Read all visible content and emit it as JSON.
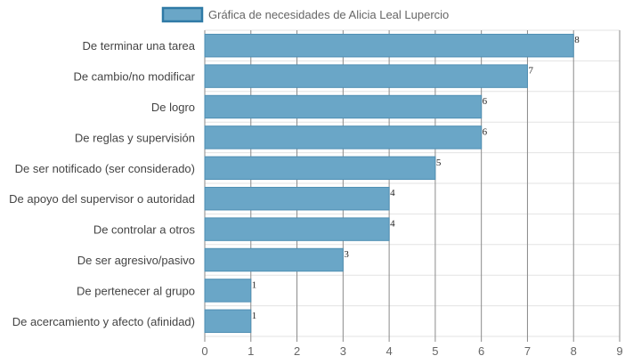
{
  "legend": {
    "label": "Gráfica de necesidades de Alicia Leal Lupercio"
  },
  "colors": {
    "bar_fill": "#6aa6c7",
    "bar_stroke": "#4f8fb3",
    "legend_stroke": "#2f7aa6",
    "grid_major": "#8a8a8a",
    "grid_minor": "#e3e3e3"
  },
  "chart_data": {
    "type": "bar",
    "orientation": "horizontal",
    "categories": [
      "De terminar una tarea",
      "De cambio/no modificar",
      "De logro",
      "De reglas y supervisión",
      "De ser notificado (ser considerado)",
      "De apoyo del supervisor o autoridad",
      "De controlar a otros",
      "De ser agresivo/pasivo",
      "De pertenecer al grupo",
      "De acercamiento y afecto (afinidad)"
    ],
    "series": [
      {
        "name": "Gráfica de necesidades de Alicia Leal Lupercio",
        "values": [
          8,
          7,
          6,
          6,
          5,
          4,
          4,
          3,
          1,
          1
        ]
      }
    ],
    "xlim": [
      0,
      9
    ],
    "xticks": [
      0,
      1,
      2,
      3,
      4,
      5,
      6,
      7,
      8,
      9
    ],
    "data_labels": true,
    "grid": true,
    "legend_position": "top"
  }
}
